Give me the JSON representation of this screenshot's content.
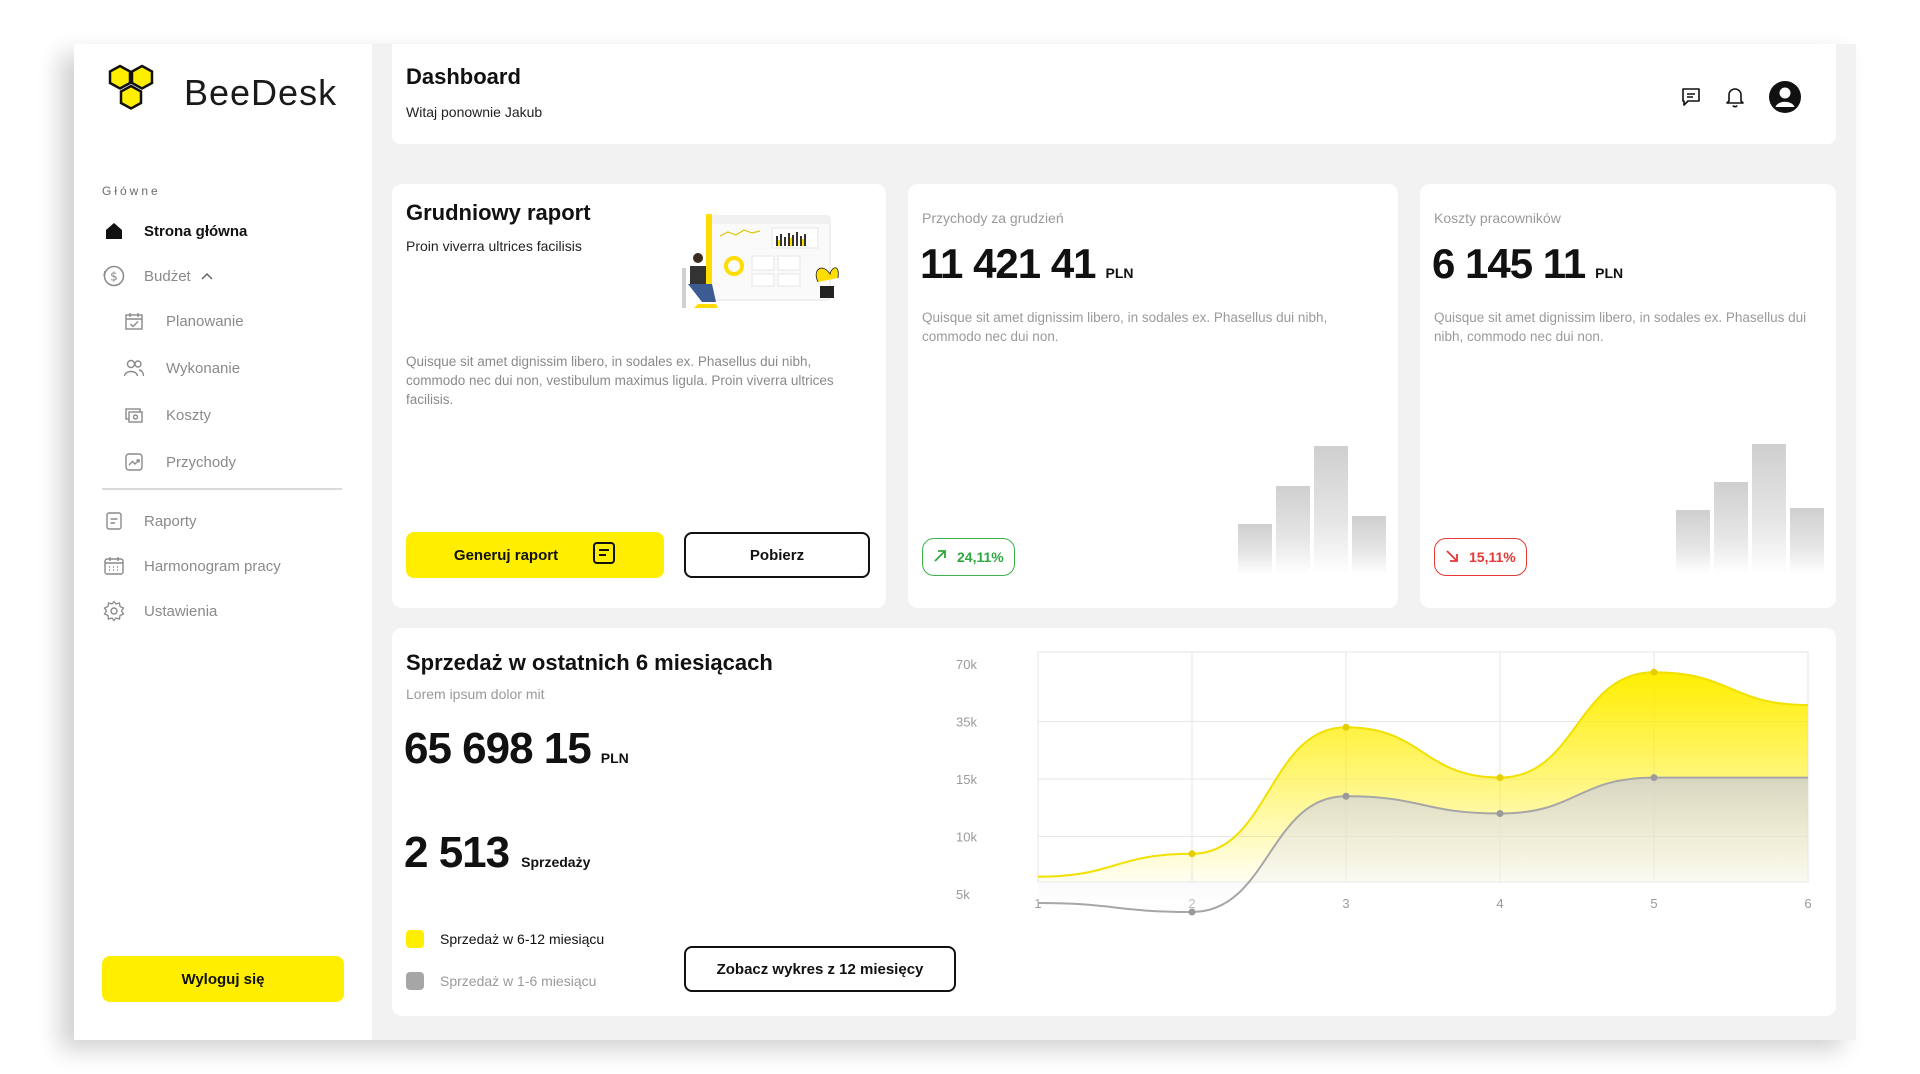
{
  "app": {
    "name": "BeeDesk"
  },
  "sidebar": {
    "section_label": "Główne",
    "items": [
      {
        "label": "Strona główna",
        "icon": "home-icon",
        "active": true
      },
      {
        "label": "Budżet",
        "icon": "dollar-circle-icon",
        "active": false,
        "expanded": true
      },
      {
        "label": "Raporty",
        "icon": "report-icon",
        "active": false
      },
      {
        "label": "Harmonogram pracy",
        "icon": "calendar-icon",
        "active": false
      },
      {
        "label": "Ustawienia",
        "icon": "gear-icon",
        "active": false
      }
    ],
    "sub_items": [
      {
        "label": "Planowanie",
        "icon": "calendar-check-icon"
      },
      {
        "label": "Wykonanie",
        "icon": "users-icon"
      },
      {
        "label": "Koszty",
        "icon": "money-icon"
      },
      {
        "label": "Przychody",
        "icon": "trend-up-icon"
      }
    ],
    "logout_label": "Wyloguj się"
  },
  "header": {
    "title": "Dashboard",
    "subtitle": "Witaj ponownie Jakub",
    "icons": [
      "message-icon",
      "bell-icon",
      "user-avatar-icon"
    ]
  },
  "report_card": {
    "title": "Grudniowy raport",
    "subtitle": "Proin viverra ultrices facilisis",
    "description": "Quisque sit amet dignissim libero, in sodales ex. Phasellus dui nibh, commodo nec dui non, vestibulum maximus ligula. Proin viverra ultrices facilisis.",
    "generate_label": "Generuj raport",
    "download_label": "Pobierz"
  },
  "stats": [
    {
      "label": "Przychody za grudzień",
      "value": "11 421 41",
      "currency": "PLN",
      "description": "Quisque sit amet dignissim libero, in sodales ex. Phasellus dui nibh, commodo nec dui non.",
      "change": "24,11%",
      "trend": "up",
      "bars": [
        0.26,
        0.5,
        0.8,
        0.3
      ]
    },
    {
      "label": "Koszty pracowników",
      "value": "6 145 11",
      "currency": "PLN",
      "description": "Quisque sit amet dignissim libero, in sodales ex. Phasellus dui nibh, commodo nec dui non.",
      "change": "15,11%",
      "trend": "down",
      "bars": [
        0.34,
        0.52,
        0.8,
        0.35
      ]
    }
  ],
  "sales": {
    "title": "Sprzedaż w ostatnich 6 miesiącach",
    "subtitle": "Lorem ipsum dolor mit",
    "total": "65 698 15",
    "currency": "PLN",
    "count": "2 513",
    "count_label": "Sprzedaży",
    "legend": [
      {
        "label": "Sprzedaż w 6-12 miesiącu",
        "color": "#ffee00"
      },
      {
        "label": "Sprzedaż w 1-6 miesiącu",
        "color": "#a6a6a6"
      }
    ],
    "button_label": "Zobacz wykres z 12 miesięcy"
  },
  "chart_data": {
    "type": "area",
    "x": [
      1,
      2,
      3,
      4,
      5,
      6
    ],
    "y_ticks": [
      "70k",
      "35k",
      "15k",
      "10k",
      "5k"
    ],
    "series": [
      {
        "name": "Sprzedaż w 6-12 miesiącu",
        "color": "#ffee00",
        "values": [
          6500,
          8500,
          33000,
          15500,
          65000,
          45000
        ]
      },
      {
        "name": "Sprzedaż w 1-6 miesiącu",
        "color": "#a6a6a6",
        "values": [
          3500,
          2000,
          13500,
          12000,
          15500,
          15500
        ]
      }
    ],
    "grid": true
  },
  "colors": {
    "accent": "#ffee00",
    "up": "#2fa83d",
    "down": "#e53935"
  }
}
